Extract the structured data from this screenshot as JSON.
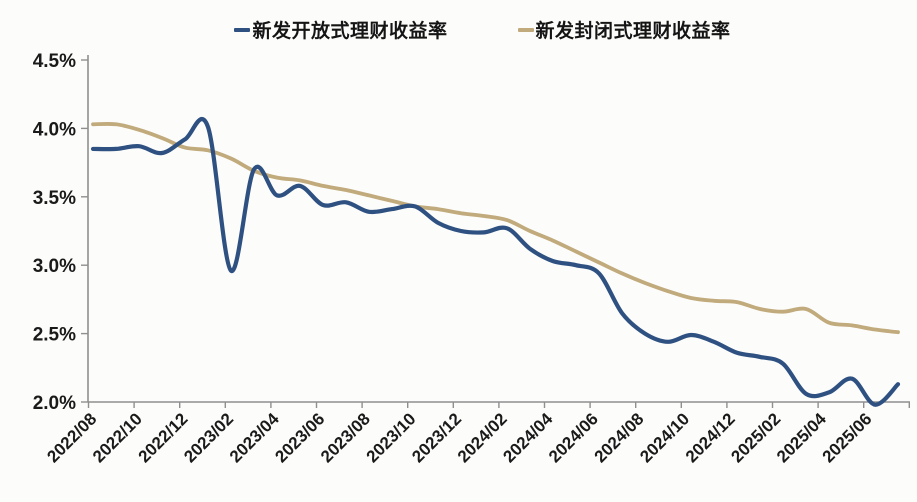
{
  "chart_data": {
    "type": "line",
    "title": "",
    "xlabel": "",
    "ylabel": "",
    "grid": false,
    "legend_position": "top",
    "ylim": [
      2.0,
      4.5
    ],
    "y_tick_labels": [
      "4.5%",
      "4.0%",
      "3.5%",
      "3.0%",
      "2.5%",
      "2.0%"
    ],
    "y_tick_values": [
      4.5,
      4.0,
      3.5,
      3.0,
      2.5,
      2.0
    ],
    "x_tick_labels": [
      "2022/08",
      "2022/10",
      "2022/12",
      "2023/02",
      "2023/04",
      "2023/06",
      "2023/08",
      "2023/10",
      "2023/12",
      "2024/02",
      "2024/04",
      "2024/06",
      "2024/08",
      "2024/10",
      "2024/12",
      "2025/02",
      "2025/04",
      "2025/06"
    ],
    "x": [
      "2022/08",
      "2022/09",
      "2022/10",
      "2022/11",
      "2022/12",
      "2023/01",
      "2023/02",
      "2023/03",
      "2023/04",
      "2023/05",
      "2023/06",
      "2023/07",
      "2023/08",
      "2023/09",
      "2023/10",
      "2023/11",
      "2023/12",
      "2024/01",
      "2024/02",
      "2024/03",
      "2024/04",
      "2024/05",
      "2024/06",
      "2024/07",
      "2024/08",
      "2024/09",
      "2024/10",
      "2024/11",
      "2024/12",
      "2025/01",
      "2025/02",
      "2025/03",
      "2025/04",
      "2025/05",
      "2025/06",
      "2025/07"
    ],
    "series": [
      {
        "name": "新发开放式理财收益率",
        "color": "#2e5182",
        "unit": "%",
        "values": [
          3.85,
          3.85,
          3.87,
          3.82,
          3.92,
          4.01,
          2.96,
          3.7,
          3.51,
          3.58,
          3.44,
          3.46,
          3.39,
          3.41,
          3.43,
          3.31,
          3.25,
          3.24,
          3.27,
          3.12,
          3.03,
          3.0,
          2.94,
          2.65,
          2.5,
          2.44,
          2.49,
          2.44,
          2.36,
          2.33,
          2.28,
          2.06,
          2.07,
          2.17,
          1.98,
          2.13
        ]
      },
      {
        "name": "新发封闭式理财收益率",
        "color": "#c1aa7c",
        "unit": "%",
        "values": [
          4.03,
          4.03,
          3.99,
          3.93,
          3.86,
          3.84,
          3.78,
          3.69,
          3.64,
          3.62,
          3.58,
          3.55,
          3.51,
          3.47,
          3.43,
          3.41,
          3.38,
          3.36,
          3.33,
          3.25,
          3.18,
          3.1,
          3.02,
          2.94,
          2.87,
          2.81,
          2.76,
          2.74,
          2.73,
          2.68,
          2.66,
          2.68,
          2.58,
          2.56,
          2.53,
          2.51
        ]
      }
    ]
  },
  "style_colors": {
    "axis_line": "#8f8f8f",
    "tick_mark": "#8f8f8f",
    "label_text": "#1a1a1a",
    "background": "#fcfcfa"
  }
}
